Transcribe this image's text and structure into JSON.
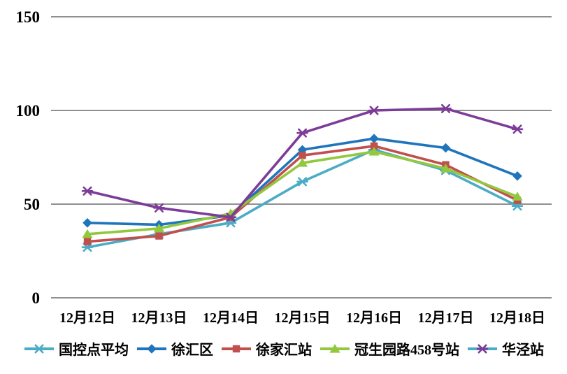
{
  "chart_data": {
    "type": "line",
    "title": "",
    "xlabel": "",
    "ylabel": "",
    "ylim": [
      0,
      150
    ],
    "y_ticks": [
      "0",
      "50",
      "100",
      "150"
    ],
    "y_tick_values": [
      0,
      50,
      100,
      150
    ],
    "grid": true,
    "legend_position": "bottom",
    "gridline_color": "#808080",
    "background_color": "#FFFFFF",
    "text_color": "#000000",
    "categories": [
      "12月12日",
      "12月13日",
      "12月14日",
      "12月15日",
      "12月16日",
      "12月17日",
      "12月18日"
    ],
    "series": [
      {
        "name": "国控点平均",
        "color": "#4BACC6",
        "marker": "asterisk",
        "values": [
          27,
          34,
          40,
          62,
          79,
          68,
          49
        ]
      },
      {
        "name": "徐汇区",
        "color": "#1F75BB",
        "marker": "diamond",
        "values": [
          40,
          39,
          44,
          79,
          85,
          80,
          65
        ]
      },
      {
        "name": "徐家汇站",
        "color": "#C0504D",
        "marker": "square",
        "values": [
          30,
          33,
          43,
          76,
          81,
          71,
          52
        ]
      },
      {
        "name": "冠生园路458号站",
        "color": "#92C83D",
        "marker": "triangle",
        "values": [
          34,
          37,
          45,
          72,
          78,
          69,
          54
        ]
      },
      {
        "name": "华泾站",
        "color": "#7D3C98",
        "marker": "asterisk",
        "legend_line_color": "#4BACC6",
        "values": [
          57,
          48,
          43,
          88,
          100,
          101,
          90
        ]
      }
    ]
  }
}
